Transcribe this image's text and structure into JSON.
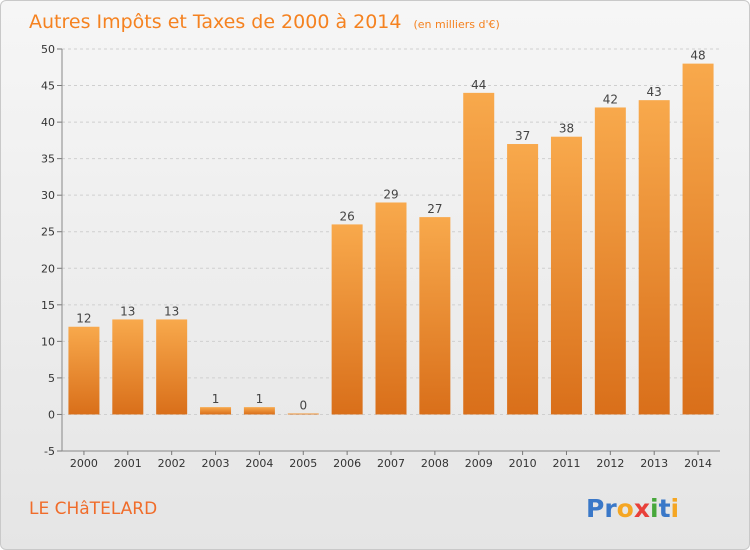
{
  "header": {
    "title": "Autres Impôts et Taxes de 2000 à 2014",
    "subtitle": "(en milliers d'€)"
  },
  "location": "LE CHâTELARD",
  "logo": {
    "text": "Proxiti",
    "letters": [
      "P",
      "r",
      "o",
      "x",
      "i",
      "t",
      "i"
    ],
    "colors": [
      "#3a78c8",
      "#3a78c8",
      "#f5a623",
      "#e8403a",
      "#48a83c",
      "#3a78c8",
      "#f5a623"
    ]
  },
  "colors": {
    "bar_top": "#f8a94c",
    "bar_bottom": "#d96f1a",
    "title": "#f58220",
    "grid": "#cfcfcf"
  },
  "chart_data": {
    "type": "bar",
    "title": "Autres Impôts et Taxes de 2000 à 2014",
    "subtitle": "(en milliers d'€)",
    "categories": [
      "2000",
      "2001",
      "2002",
      "2003",
      "2004",
      "2005",
      "2006",
      "2007",
      "2008",
      "2009",
      "2010",
      "2011",
      "2012",
      "2013",
      "2014"
    ],
    "values": [
      12,
      13,
      13,
      1,
      1,
      0,
      26,
      29,
      27,
      44,
      37,
      38,
      42,
      43,
      48
    ],
    "data_labels": [
      "12",
      "13",
      "13",
      "1",
      "1",
      "0",
      "26",
      "29",
      "27",
      "44",
      "37",
      "38",
      "42",
      "43",
      "48"
    ],
    "ylim": [
      -5,
      50
    ],
    "yticks": [
      -5,
      0,
      5,
      10,
      15,
      20,
      25,
      30,
      35,
      40,
      45,
      50
    ],
    "ytick_labels": [
      "-5",
      "0",
      "5",
      "10",
      "15",
      "20",
      "25",
      "30",
      "35",
      "40",
      "45",
      "50"
    ],
    "grid": true,
    "legend": "none"
  }
}
